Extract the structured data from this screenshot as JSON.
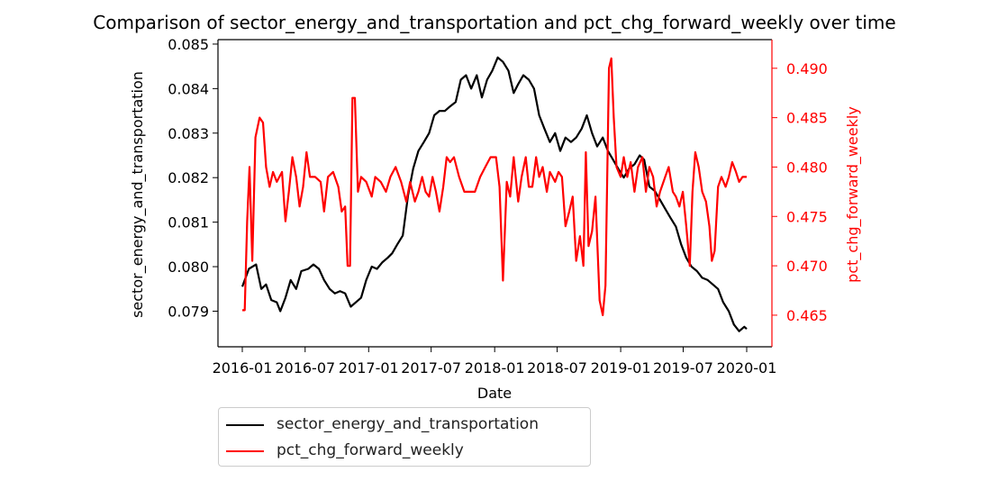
{
  "chart_data": {
    "type": "line",
    "title": "Comparison of sector_energy_and_transportation and pct_chg_forward_weekly over time",
    "xlabel": "Date",
    "x_ticks": [
      "2016-01",
      "2016-07",
      "2017-01",
      "2017-07",
      "2018-01",
      "2018-07",
      "2019-01",
      "2019-07",
      "2020-01"
    ],
    "y_left": {
      "label": "sector_energy_and_transportation",
      "color": "#000000",
      "lim": [
        0.0782,
        0.0851
      ],
      "ticks": [
        "0.079",
        "0.080",
        "0.081",
        "0.082",
        "0.083",
        "0.084",
        "0.085"
      ]
    },
    "y_right": {
      "label": "pct_chg_forward_weekly",
      "color": "#ff0000",
      "lim": [
        0.4618,
        0.4929
      ],
      "ticks": [
        "0.465",
        "0.470",
        "0.475",
        "0.480",
        "0.485",
        "0.490"
      ]
    },
    "legend_placement": "below",
    "series": [
      {
        "name": "sector_energy_and_transportation",
        "axis": "left",
        "color": "#000000",
        "points": [
          [
            "2016-01-01",
            0.07955
          ],
          [
            "2016-01-20",
            0.07995
          ],
          [
            "2016-02-10",
            0.08005
          ],
          [
            "2016-02-25",
            0.0795
          ],
          [
            "2016-03-10",
            0.0796
          ],
          [
            "2016-03-25",
            0.07925
          ],
          [
            "2016-04-10",
            0.0792
          ],
          [
            "2016-04-20",
            0.079
          ],
          [
            "2016-05-05",
            0.0793
          ],
          [
            "2016-05-20",
            0.0797
          ],
          [
            "2016-06-05",
            0.0795
          ],
          [
            "2016-06-20",
            0.0799
          ],
          [
            "2016-07-10",
            0.07995
          ],
          [
            "2016-07-25",
            0.08005
          ],
          [
            "2016-08-10",
            0.07995
          ],
          [
            "2016-08-25",
            0.0797
          ],
          [
            "2016-09-10",
            0.0795
          ],
          [
            "2016-09-25",
            0.0794
          ],
          [
            "2016-10-10",
            0.07945
          ],
          [
            "2016-10-25",
            0.0794
          ],
          [
            "2016-11-10",
            0.0791
          ],
          [
            "2016-11-25",
            0.0792
          ],
          [
            "2016-12-10",
            0.0793
          ],
          [
            "2016-12-25",
            0.0797
          ],
          [
            "2017-01-10",
            0.08
          ],
          [
            "2017-01-25",
            0.07995
          ],
          [
            "2017-02-10",
            0.0801
          ],
          [
            "2017-02-25",
            0.0802
          ],
          [
            "2017-03-10",
            0.0803
          ],
          [
            "2017-03-25",
            0.0805
          ],
          [
            "2017-04-10",
            0.0807
          ],
          [
            "2017-04-25",
            0.0816
          ],
          [
            "2017-05-10",
            0.0822
          ],
          [
            "2017-05-25",
            0.0826
          ],
          [
            "2017-06-10",
            0.0828
          ],
          [
            "2017-06-25",
            0.083
          ],
          [
            "2017-07-10",
            0.0834
          ],
          [
            "2017-07-25",
            0.0835
          ],
          [
            "2017-08-10",
            0.0835
          ],
          [
            "2017-08-25",
            0.0836
          ],
          [
            "2017-09-10",
            0.0837
          ],
          [
            "2017-09-25",
            0.0842
          ],
          [
            "2017-10-10",
            0.0843
          ],
          [
            "2017-10-25",
            0.084
          ],
          [
            "2017-11-10",
            0.0843
          ],
          [
            "2017-11-25",
            0.0838
          ],
          [
            "2017-12-10",
            0.0842
          ],
          [
            "2017-12-25",
            0.0844
          ],
          [
            "2018-01-10",
            0.0847
          ],
          [
            "2018-01-25",
            0.0846
          ],
          [
            "2018-02-10",
            0.0844
          ],
          [
            "2018-02-25",
            0.0839
          ],
          [
            "2018-03-10",
            0.0841
          ],
          [
            "2018-03-25",
            0.0843
          ],
          [
            "2018-04-10",
            0.0842
          ],
          [
            "2018-04-25",
            0.084
          ],
          [
            "2018-05-10",
            0.0834
          ],
          [
            "2018-05-25",
            0.0831
          ],
          [
            "2018-06-10",
            0.0828
          ],
          [
            "2018-06-25",
            0.083
          ],
          [
            "2018-07-10",
            0.0826
          ],
          [
            "2018-07-25",
            0.0829
          ],
          [
            "2018-08-10",
            0.0828
          ],
          [
            "2018-08-25",
            0.0829
          ],
          [
            "2018-09-10",
            0.0831
          ],
          [
            "2018-09-25",
            0.0834
          ],
          [
            "2018-10-10",
            0.083
          ],
          [
            "2018-10-25",
            0.0827
          ],
          [
            "2018-11-10",
            0.0829
          ],
          [
            "2018-11-25",
            0.0826
          ],
          [
            "2018-12-10",
            0.0824
          ],
          [
            "2018-12-25",
            0.0822
          ],
          [
            "2019-01-10",
            0.082
          ],
          [
            "2019-01-25",
            0.0822
          ],
          [
            "2019-02-10",
            0.0823
          ],
          [
            "2019-02-25",
            0.0825
          ],
          [
            "2019-03-10",
            0.0824
          ],
          [
            "2019-03-25",
            0.0818
          ],
          [
            "2019-04-10",
            0.0817
          ],
          [
            "2019-04-25",
            0.0815
          ],
          [
            "2019-05-10",
            0.0813
          ],
          [
            "2019-05-25",
            0.0811
          ],
          [
            "2019-06-10",
            0.0809
          ],
          [
            "2019-06-25",
            0.0805
          ],
          [
            "2019-07-10",
            0.0802
          ],
          [
            "2019-07-25",
            0.08
          ],
          [
            "2019-08-10",
            0.0799
          ],
          [
            "2019-08-25",
            0.07975
          ],
          [
            "2019-09-10",
            0.0797
          ],
          [
            "2019-09-25",
            0.0796
          ],
          [
            "2019-10-10",
            0.0795
          ],
          [
            "2019-10-25",
            0.0792
          ],
          [
            "2019-11-10",
            0.079
          ],
          [
            "2019-11-25",
            0.0787
          ],
          [
            "2019-12-10",
            0.07855
          ],
          [
            "2019-12-25",
            0.07865
          ],
          [
            "2020-01-01",
            0.0786
          ]
        ]
      },
      {
        "name": "pct_chg_forward_weekly",
        "axis": "right",
        "color": "#ff0000",
        "points": [
          [
            "2016-01-01",
            0.4655
          ],
          [
            "2016-01-08",
            0.4655
          ],
          [
            "2016-01-15",
            0.4745
          ],
          [
            "2016-01-22",
            0.48
          ],
          [
            "2016-01-30",
            0.4705
          ],
          [
            "2016-02-08",
            0.483
          ],
          [
            "2016-02-20",
            0.485
          ],
          [
            "2016-03-01",
            0.4845
          ],
          [
            "2016-03-10",
            0.48
          ],
          [
            "2016-03-20",
            0.478
          ],
          [
            "2016-03-30",
            0.4795
          ],
          [
            "2016-04-10",
            0.4785
          ],
          [
            "2016-04-25",
            0.4795
          ],
          [
            "2016-05-05",
            0.4745
          ],
          [
            "2016-05-15",
            0.4775
          ],
          [
            "2016-05-25",
            0.481
          ],
          [
            "2016-06-05",
            0.479
          ],
          [
            "2016-06-15",
            0.476
          ],
          [
            "2016-06-25",
            0.478
          ],
          [
            "2016-07-05",
            0.4815
          ],
          [
            "2016-07-15",
            0.479
          ],
          [
            "2016-07-30",
            0.479
          ],
          [
            "2016-08-15",
            0.4785
          ],
          [
            "2016-08-25",
            0.4755
          ],
          [
            "2016-09-05",
            0.479
          ],
          [
            "2016-09-20",
            0.4795
          ],
          [
            "2016-10-05",
            0.478
          ],
          [
            "2016-10-15",
            0.4755
          ],
          [
            "2016-10-25",
            0.476
          ],
          [
            "2016-11-01",
            0.47
          ],
          [
            "2016-11-08",
            0.47
          ],
          [
            "2016-11-15",
            0.487
          ],
          [
            "2016-11-22",
            0.487
          ],
          [
            "2016-12-01",
            0.4775
          ],
          [
            "2016-12-10",
            0.479
          ],
          [
            "2016-12-25",
            0.4785
          ],
          [
            "2017-01-10",
            0.477
          ],
          [
            "2017-01-20",
            0.479
          ],
          [
            "2017-02-05",
            0.4785
          ],
          [
            "2017-02-20",
            0.4775
          ],
          [
            "2017-03-05",
            0.479
          ],
          [
            "2017-03-20",
            0.48
          ],
          [
            "2017-04-05",
            0.4785
          ],
          [
            "2017-04-20",
            0.4765
          ],
          [
            "2017-05-01",
            0.4785
          ],
          [
            "2017-05-15",
            0.4765
          ],
          [
            "2017-05-25",
            0.4775
          ],
          [
            "2017-06-05",
            0.479
          ],
          [
            "2017-06-15",
            0.4775
          ],
          [
            "2017-06-25",
            0.477
          ],
          [
            "2017-07-05",
            0.479
          ],
          [
            "2017-07-15",
            0.4775
          ],
          [
            "2017-07-25",
            0.4755
          ],
          [
            "2017-08-05",
            0.478
          ],
          [
            "2017-08-15",
            0.481
          ],
          [
            "2017-08-25",
            0.4805
          ],
          [
            "2017-09-05",
            0.481
          ],
          [
            "2017-09-20",
            0.479
          ],
          [
            "2017-10-05",
            0.4775
          ],
          [
            "2017-10-20",
            0.4775
          ],
          [
            "2017-11-05",
            0.4775
          ],
          [
            "2017-11-20",
            0.479
          ],
          [
            "2017-12-05",
            0.48
          ],
          [
            "2017-12-20",
            0.481
          ],
          [
            "2018-01-05",
            0.481
          ],
          [
            "2018-01-15",
            0.478
          ],
          [
            "2018-01-25",
            0.4685
          ],
          [
            "2018-02-05",
            0.4785
          ],
          [
            "2018-02-15",
            0.477
          ],
          [
            "2018-02-25",
            0.481
          ],
          [
            "2018-03-10",
            0.4765
          ],
          [
            "2018-03-20",
            0.479
          ],
          [
            "2018-04-01",
            0.481
          ],
          [
            "2018-04-10",
            0.478
          ],
          [
            "2018-04-20",
            0.478
          ],
          [
            "2018-05-01",
            0.481
          ],
          [
            "2018-05-10",
            0.479
          ],
          [
            "2018-05-20",
            0.48
          ],
          [
            "2018-06-01",
            0.4775
          ],
          [
            "2018-06-10",
            0.4795
          ],
          [
            "2018-06-25",
            0.4785
          ],
          [
            "2018-07-05",
            0.4795
          ],
          [
            "2018-07-15",
            0.479
          ],
          [
            "2018-07-25",
            0.474
          ],
          [
            "2018-08-05",
            0.4755
          ],
          [
            "2018-08-15",
            0.477
          ],
          [
            "2018-08-25",
            0.4705
          ],
          [
            "2018-09-05",
            0.473
          ],
          [
            "2018-09-15",
            0.47
          ],
          [
            "2018-09-22",
            0.4815
          ],
          [
            "2018-09-30",
            0.472
          ],
          [
            "2018-10-10",
            0.4735
          ],
          [
            "2018-10-20",
            0.477
          ],
          [
            "2018-11-01",
            0.4665
          ],
          [
            "2018-11-10",
            0.465
          ],
          [
            "2018-11-18",
            0.468
          ],
          [
            "2018-11-28",
            0.49
          ],
          [
            "2018-12-05",
            0.491
          ],
          [
            "2018-12-12",
            0.485
          ],
          [
            "2018-12-20",
            0.48
          ],
          [
            "2019-01-01",
            0.479
          ],
          [
            "2019-01-10",
            0.481
          ],
          [
            "2019-01-20",
            0.479
          ],
          [
            "2019-01-30",
            0.4805
          ],
          [
            "2019-02-10",
            0.4775
          ],
          [
            "2019-02-20",
            0.48
          ],
          [
            "2019-03-05",
            0.481
          ],
          [
            "2019-03-15",
            0.4775
          ],
          [
            "2019-03-25",
            0.48
          ],
          [
            "2019-04-05",
            0.479
          ],
          [
            "2019-04-15",
            0.476
          ],
          [
            "2019-04-25",
            0.4775
          ],
          [
            "2019-05-10",
            0.479
          ],
          [
            "2019-05-20",
            0.48
          ],
          [
            "2019-06-01",
            0.4775
          ],
          [
            "2019-06-10",
            0.477
          ],
          [
            "2019-06-20",
            0.476
          ],
          [
            "2019-06-30",
            0.4775
          ],
          [
            "2019-07-10",
            0.474
          ],
          [
            "2019-07-20",
            0.47
          ],
          [
            "2019-07-28",
            0.4775
          ],
          [
            "2019-08-05",
            0.4815
          ],
          [
            "2019-08-15",
            0.48
          ],
          [
            "2019-08-25",
            0.4775
          ],
          [
            "2019-09-05",
            0.4765
          ],
          [
            "2019-09-15",
            0.474
          ],
          [
            "2019-09-22",
            0.4705
          ],
          [
            "2019-09-30",
            0.4715
          ],
          [
            "2019-10-10",
            0.478
          ],
          [
            "2019-10-20",
            0.479
          ],
          [
            "2019-11-01",
            0.478
          ],
          [
            "2019-11-10",
            0.479
          ],
          [
            "2019-11-20",
            0.4805
          ],
          [
            "2019-12-01",
            0.4795
          ],
          [
            "2019-12-10",
            0.4785
          ],
          [
            "2019-12-20",
            0.479
          ],
          [
            "2020-01-01",
            0.479
          ]
        ]
      }
    ]
  }
}
